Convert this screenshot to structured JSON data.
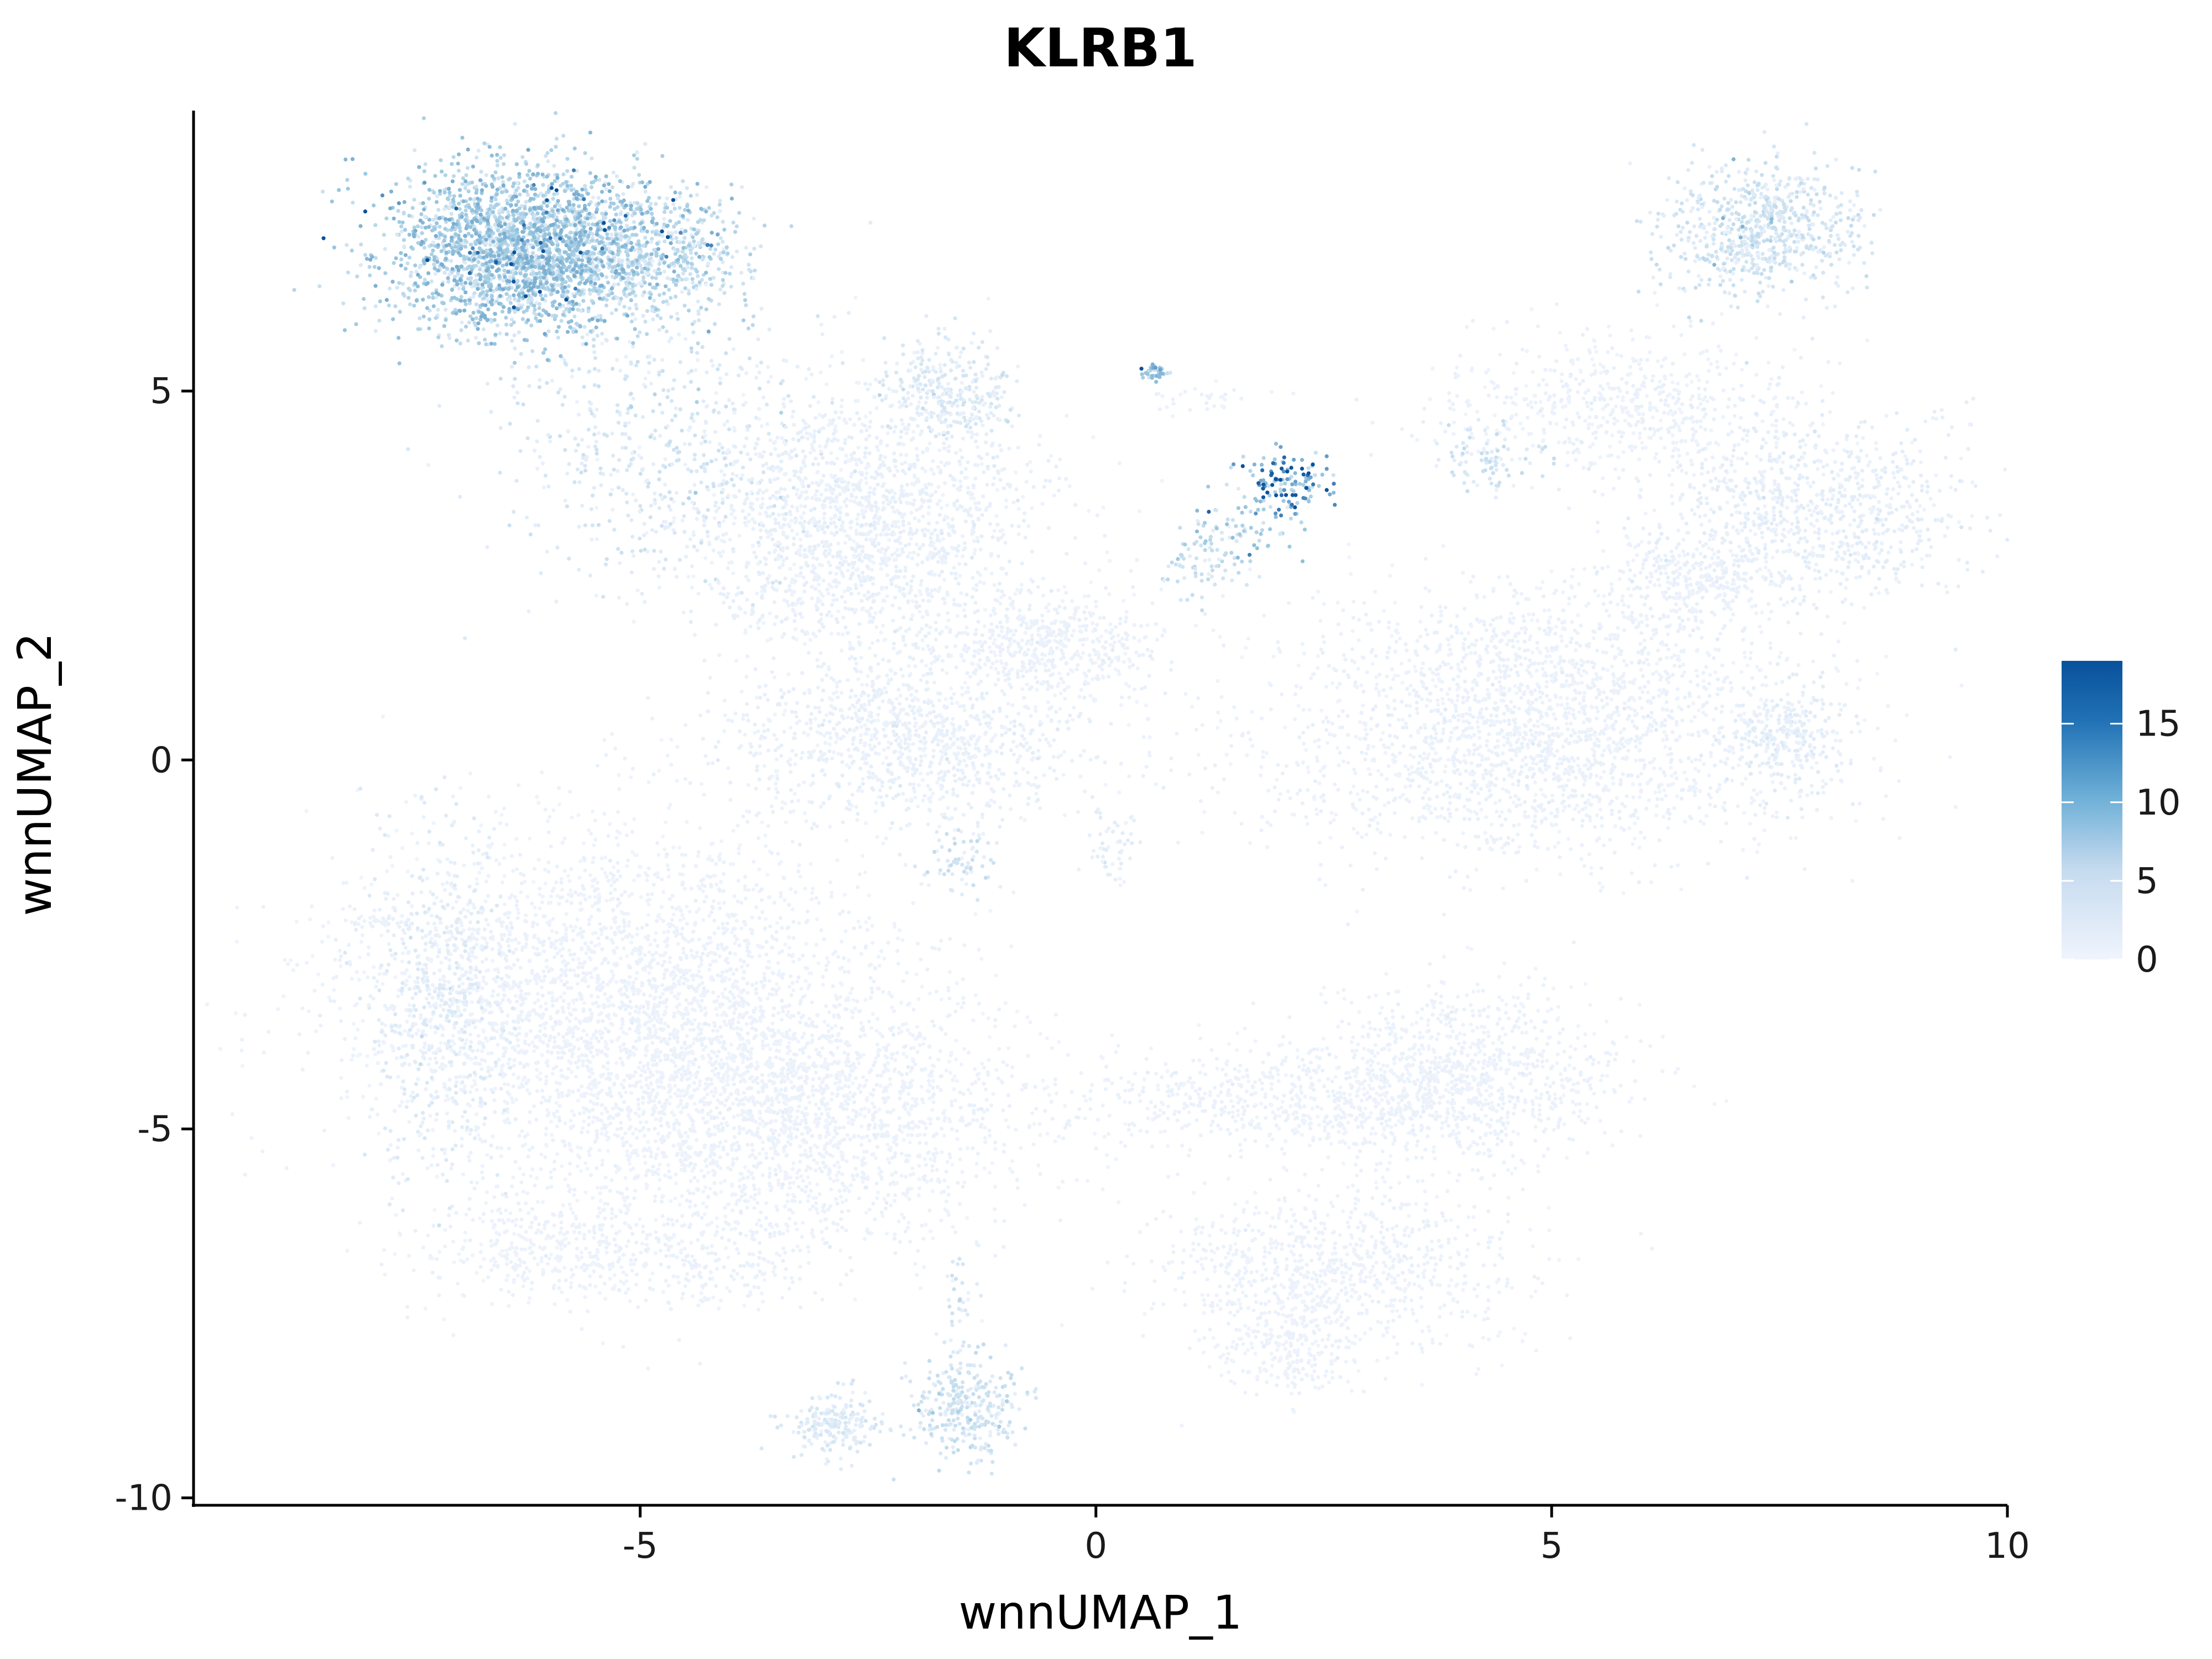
{
  "chart_data": {
    "type": "scatter",
    "title": "KLRB1",
    "xlabel": "wnnUMAP_1",
    "ylabel": "wnnUMAP_2",
    "xlim": [
      -9.9,
      10.0
    ],
    "ylim": [
      -10.1,
      8.8
    ],
    "x_ticks": [
      -5,
      0,
      5,
      10
    ],
    "x_tick_labels": [
      "-5",
      "0",
      "5",
      "10"
    ],
    "y_ticks": [
      -10,
      -5,
      0,
      5
    ],
    "y_tick_labels": [
      "-10",
      "-5",
      "0",
      "5"
    ],
    "grid": false,
    "color_scale": {
      "min": 0,
      "max": 19,
      "low_color": "#f0f4fd",
      "mid_color": "#9ecae1",
      "high_color": "#08519c",
      "ticks": [
        0,
        5,
        10,
        15
      ],
      "tick_labels": [
        "0",
        "5",
        "10",
        "15"
      ],
      "legend_position": "right"
    },
    "clusters": [
      {
        "cx": -6.2,
        "cy": 6.9,
        "sx": 0.75,
        "sy": 0.55,
        "n": 2600,
        "expr": 7.0
      },
      {
        "cx": -4.7,
        "cy": 6.8,
        "sx": 0.45,
        "sy": 0.45,
        "n": 400,
        "expr": 4.5
      },
      {
        "cx": -4.8,
        "cy": 4.3,
        "sx": 0.9,
        "sy": 0.9,
        "n": 500,
        "expr": 2.5
      },
      {
        "cx": -1.6,
        "cy": 5.0,
        "sx": 0.35,
        "sy": 0.35,
        "n": 300,
        "expr": 2.0
      },
      {
        "cx": -2.6,
        "cy": 3.2,
        "sx": 1.0,
        "sy": 0.9,
        "n": 1800,
        "expr": 0.7
      },
      {
        "cx": -2.0,
        "cy": 0.3,
        "sx": 1.0,
        "sy": 0.6,
        "n": 1100,
        "expr": 0.7
      },
      {
        "cx": -0.5,
        "cy": 1.6,
        "sx": 0.6,
        "sy": 0.35,
        "n": 500,
        "expr": 0.5
      },
      {
        "cx": -1.5,
        "cy": -1.4,
        "sx": 0.2,
        "sy": 0.2,
        "n": 60,
        "expr": 3.0
      },
      {
        "cx": 0.2,
        "cy": -1.2,
        "sx": 0.15,
        "sy": 0.3,
        "n": 50,
        "expr": 1.0
      },
      {
        "cx": 0.65,
        "cy": 5.25,
        "sx": 0.08,
        "sy": 0.05,
        "n": 40,
        "expr": 8.0
      },
      {
        "cx": 1.3,
        "cy": 4.9,
        "sx": 0.4,
        "sy": 0.08,
        "n": 30,
        "expr": 0.5
      },
      {
        "cx": 2.1,
        "cy": 3.75,
        "sx": 0.25,
        "sy": 0.2,
        "n": 120,
        "expr": 14.0
      },
      {
        "cx": 1.6,
        "cy": 3.1,
        "sx": 0.3,
        "sy": 0.25,
        "n": 80,
        "expr": 6.0
      },
      {
        "cx": 1.2,
        "cy": 2.6,
        "sx": 0.25,
        "sy": 0.2,
        "n": 60,
        "expr": 3.5
      },
      {
        "cx": 7.3,
        "cy": 7.2,
        "sx": 0.55,
        "sy": 0.45,
        "n": 700,
        "expr": 3.0
      },
      {
        "cx": 5.8,
        "cy": 4.8,
        "sx": 1.1,
        "sy": 0.5,
        "n": 600,
        "expr": 0.5
      },
      {
        "cx": 4.3,
        "cy": 4.1,
        "sx": 0.3,
        "sy": 0.2,
        "n": 80,
        "expr": 3.0
      },
      {
        "cx": 7.9,
        "cy": 3.4,
        "sx": 0.9,
        "sy": 0.6,
        "n": 900,
        "expr": 1.0
      },
      {
        "cx": 6.5,
        "cy": 2.5,
        "sx": 0.5,
        "sy": 0.3,
        "n": 300,
        "expr": 0.6
      },
      {
        "cx": 5.0,
        "cy": 1.3,
        "sx": 1.3,
        "sy": 0.6,
        "n": 900,
        "expr": 0.5
      },
      {
        "cx": 4.8,
        "cy": 0.0,
        "sx": 1.6,
        "sy": 0.7,
        "n": 1500,
        "expr": 0.5
      },
      {
        "cx": 7.6,
        "cy": 0.3,
        "sx": 0.35,
        "sy": 0.35,
        "n": 250,
        "expr": 1.2
      },
      {
        "cx": -5.3,
        "cy": -3.3,
        "sx": 1.5,
        "sy": 1.2,
        "n": 3000,
        "expr": 0.4
      },
      {
        "cx": -3.3,
        "cy": -4.8,
        "sx": 1.3,
        "sy": 0.9,
        "n": 2000,
        "expr": 0.4
      },
      {
        "cx": -7.2,
        "cy": -3.2,
        "sx": 0.4,
        "sy": 1.2,
        "n": 500,
        "expr": 1.5
      },
      {
        "cx": -6.0,
        "cy": -6.6,
        "sx": 0.8,
        "sy": 0.4,
        "n": 400,
        "expr": 0.4
      },
      {
        "cx": -4.3,
        "cy": -6.8,
        "sx": 0.6,
        "sy": 0.35,
        "n": 200,
        "expr": 0.5
      },
      {
        "cx": -7.9,
        "cy": -2.2,
        "sx": 0.25,
        "sy": 0.05,
        "n": 30,
        "expr": 0.6
      },
      {
        "cx": 4.0,
        "cy": -4.3,
        "sx": 0.9,
        "sy": 0.6,
        "n": 1000,
        "expr": 0.4
      },
      {
        "cx": 2.0,
        "cy": -4.6,
        "sx": 1.2,
        "sy": 0.35,
        "n": 600,
        "expr": 0.4
      },
      {
        "cx": 2.6,
        "cy": -6.9,
        "sx": 1.0,
        "sy": 0.55,
        "n": 900,
        "expr": 0.4
      },
      {
        "cx": 2.1,
        "cy": -8.0,
        "sx": 0.4,
        "sy": 0.3,
        "n": 200,
        "expr": 0.4
      },
      {
        "cx": -1.4,
        "cy": -8.8,
        "sx": 0.3,
        "sy": 0.35,
        "n": 300,
        "expr": 3.0
      },
      {
        "cx": -2.9,
        "cy": -9.0,
        "sx": 0.25,
        "sy": 0.2,
        "n": 200,
        "expr": 2.0
      },
      {
        "cx": -1.5,
        "cy": -7.6,
        "sx": 0.1,
        "sy": 0.5,
        "n": 40,
        "expr": 2.5
      }
    ]
  }
}
